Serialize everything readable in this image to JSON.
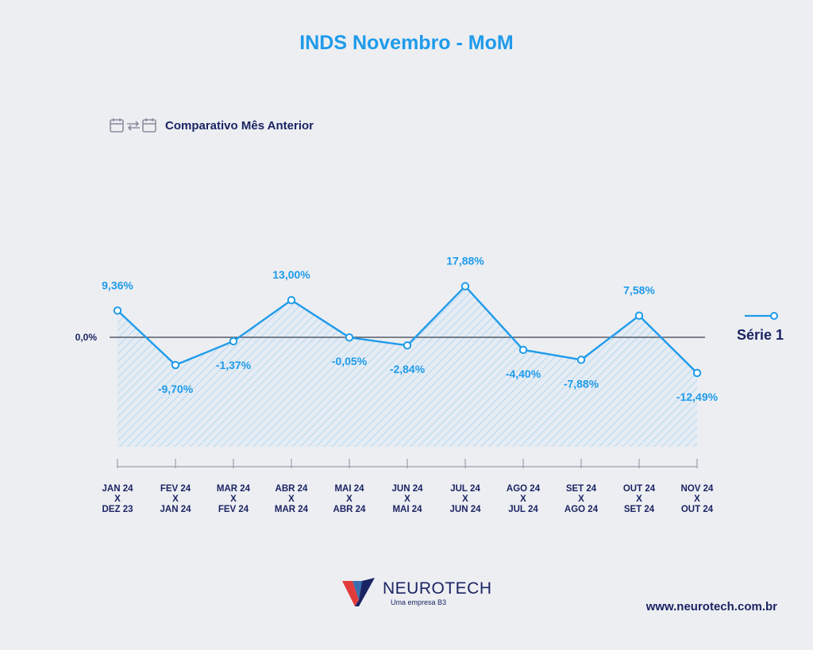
{
  "page": {
    "title": "INDS Novembro - MoM",
    "subtitle": "Comparativo Mês Anterior"
  },
  "chart_data": {
    "type": "area",
    "categories": [
      [
        "JAN 24",
        "X",
        "DEZ 23"
      ],
      [
        "FEV 24",
        "X",
        "JAN 24"
      ],
      [
        "MAR 24",
        "X",
        "FEV 24"
      ],
      [
        "ABR 24",
        "X",
        "MAR 24"
      ],
      [
        "MAI 24",
        "X",
        "ABR 24"
      ],
      [
        "JUN 24",
        "X",
        "MAI 24"
      ],
      [
        "JUL 24",
        "X",
        "JUN 24"
      ],
      [
        "AGO 24",
        "X",
        "JUL 24"
      ],
      [
        "SET 24",
        "X",
        "AGO 24"
      ],
      [
        "OUT 24",
        "X",
        "SET 24"
      ],
      [
        "NOV 24",
        "X",
        "OUT 24"
      ]
    ],
    "series": [
      {
        "name": "Série 1",
        "values": [
          9.36,
          -9.7,
          -1.37,
          13.0,
          -0.05,
          -2.84,
          17.88,
          -4.4,
          -7.88,
          7.58,
          -12.49
        ],
        "labels": [
          "9,36%",
          "-9,70%",
          "-1,37%",
          "13,00%",
          "-0,05%",
          "-2,84%",
          "17,88%",
          "-4,40%",
          "-7,88%",
          "7,58%",
          "-12,49%"
        ],
        "color": "#1f9bea"
      }
    ],
    "zero_label": "0,0%",
    "legend_position": "right",
    "ylim": [
      -20,
      20
    ],
    "grid": false,
    "fill": "hatched"
  },
  "footer": {
    "brand_name": "NEUROTECH",
    "brand_tagline": "Uma empresa B3",
    "website": "www.neurotech.com.br"
  },
  "icons": {
    "subtitle": "calendar-compare-icon",
    "logo": "neurotech-logo-icon"
  },
  "colors": {
    "accent": "#1f9bea",
    "navy": "#1b2463",
    "background": "#eceef2",
    "logo_red": "#e23b3b"
  }
}
